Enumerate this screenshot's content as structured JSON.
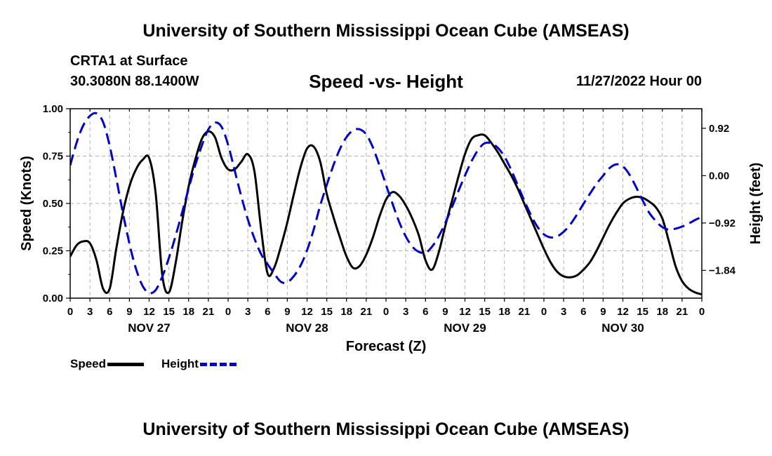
{
  "header": {
    "title": "University of Southern Mississippi Ocean Cube (AMSEAS)",
    "station": "CRTA1 at Surface",
    "coordinates": "30.3080N  88.1400W",
    "subtitle": "Speed -vs- Height",
    "datetime": "11/27/2022 Hour 00",
    "footer_title": "University of Southern Mississippi Ocean Cube (AMSEAS)"
  },
  "legend": {
    "speed_label": "Speed",
    "height_label": "Height"
  },
  "colors": {
    "speed": "#000000",
    "height": "#0000cc",
    "grid": "#b0b0b0"
  },
  "chart_data": {
    "type": "line",
    "title": "Speed -vs- Height",
    "xlabel": "Forecast (Z)",
    "ylabel": "Speed (Knots)",
    "y2label": "Height (feet)",
    "xlim": [
      0,
      96
    ],
    "ylim": [
      0,
      1
    ],
    "y2lim": [
      -2.38,
      1.3
    ],
    "grid": true,
    "x_tick_hours": [
      0,
      3,
      6,
      9,
      12,
      15,
      18,
      21,
      24,
      27,
      30,
      33,
      36,
      39,
      42,
      45,
      48,
      51,
      54,
      57,
      60,
      63,
      66,
      69,
      72,
      75,
      78,
      81,
      84,
      87,
      90,
      93,
      96
    ],
    "x_tick_labels": [
      "0",
      "3",
      "6",
      "9",
      "12",
      "15",
      "18",
      "21",
      "0",
      "3",
      "6",
      "9",
      "12",
      "15",
      "18",
      "21",
      "0",
      "3",
      "6",
      "9",
      "12",
      "15",
      "18",
      "21",
      "0",
      "3",
      "6",
      "9",
      "12",
      "15",
      "18",
      "21",
      "0"
    ],
    "day_labels": [
      {
        "hour": 12,
        "label": "NOV 27"
      },
      {
        "hour": 36,
        "label": "NOV 28"
      },
      {
        "hour": 60,
        "label": "NOV 29"
      },
      {
        "hour": 84,
        "label": "NOV 30"
      }
    ],
    "y_ticks": [
      0,
      0.25,
      0.5,
      0.75,
      1.0
    ],
    "y_tick_labels": [
      "0.00",
      "0.25",
      "0.50",
      "0.75",
      "1.00"
    ],
    "y2_ticks": [
      0.92,
      0.0,
      -0.92,
      -1.84
    ],
    "y2_tick_labels": [
      "0.92",
      "0.00",
      "−0.92",
      "−1.84"
    ],
    "series": [
      {
        "name": "Speed",
        "axis": "left",
        "style": "solid",
        "x": [
          0,
          1,
          2,
          3,
          4,
          5,
          6,
          7,
          8,
          9,
          10,
          11,
          12,
          13,
          14,
          15,
          16,
          17,
          18,
          19,
          20,
          21,
          22,
          23,
          24,
          25,
          26,
          27,
          28,
          29,
          30,
          31,
          32,
          33,
          34,
          35,
          36,
          37,
          38,
          39,
          40,
          41,
          42,
          43,
          44,
          45,
          46,
          47,
          48,
          49,
          50,
          51,
          52,
          53,
          54,
          55,
          56,
          57,
          58,
          59,
          60,
          61,
          62,
          63,
          64,
          65,
          66,
          67,
          68,
          69,
          70,
          71,
          72,
          73,
          74,
          75,
          76,
          77,
          78,
          79,
          80,
          81,
          82,
          83,
          84,
          85,
          86,
          87,
          88,
          89,
          90,
          91,
          92,
          93,
          94,
          95,
          96
        ],
        "values": [
          0.22,
          0.28,
          0.3,
          0.29,
          0.2,
          0.05,
          0.05,
          0.26,
          0.45,
          0.59,
          0.68,
          0.73,
          0.74,
          0.55,
          0.12,
          0.03,
          0.18,
          0.4,
          0.59,
          0.73,
          0.84,
          0.88,
          0.85,
          0.74,
          0.68,
          0.68,
          0.72,
          0.76,
          0.67,
          0.37,
          0.13,
          0.16,
          0.27,
          0.4,
          0.55,
          0.69,
          0.79,
          0.8,
          0.72,
          0.55,
          0.43,
          0.32,
          0.22,
          0.16,
          0.17,
          0.23,
          0.32,
          0.43,
          0.52,
          0.56,
          0.54,
          0.49,
          0.42,
          0.33,
          0.2,
          0.15,
          0.24,
          0.38,
          0.51,
          0.64,
          0.76,
          0.84,
          0.86,
          0.86,
          0.82,
          0.77,
          0.71,
          0.65,
          0.58,
          0.5,
          0.42,
          0.34,
          0.26,
          0.19,
          0.14,
          0.115,
          0.11,
          0.12,
          0.15,
          0.19,
          0.25,
          0.32,
          0.39,
          0.45,
          0.5,
          0.525,
          0.535,
          0.53,
          0.51,
          0.48,
          0.42,
          0.3,
          0.17,
          0.09,
          0.05,
          0.03,
          0.02
        ]
      },
      {
        "name": "Height",
        "axis": "right",
        "style": "dashed",
        "x": [
          0,
          1,
          2,
          3,
          4,
          5,
          6,
          7,
          8,
          9,
          10,
          11,
          12,
          13,
          14,
          15,
          16,
          17,
          18,
          19,
          20,
          21,
          22,
          23,
          24,
          25,
          26,
          27,
          28,
          29,
          30,
          31,
          32,
          33,
          34,
          35,
          36,
          37,
          38,
          39,
          40,
          41,
          42,
          43,
          44,
          45,
          46,
          47,
          48,
          49,
          50,
          51,
          52,
          53,
          54,
          55,
          56,
          57,
          58,
          59,
          60,
          61,
          62,
          63,
          64,
          65,
          66,
          67,
          68,
          69,
          70,
          71,
          72,
          73,
          74,
          75,
          76,
          77,
          78,
          79,
          80,
          81,
          82,
          83,
          84,
          85,
          86,
          87,
          88,
          89,
          90,
          91,
          92,
          93,
          94,
          95,
          96
        ],
        "values": [
          0.2,
          0.65,
          0.98,
          1.16,
          1.21,
          1.04,
          0.58,
          -0.05,
          -0.72,
          -1.32,
          -1.81,
          -2.14,
          -2.28,
          -2.22,
          -1.96,
          -1.6,
          -1.18,
          -0.72,
          -0.25,
          0.2,
          0.58,
          0.9,
          1.03,
          0.95,
          0.6,
          0.1,
          -0.4,
          -0.85,
          -1.22,
          -1.52,
          -1.72,
          -1.9,
          -2.06,
          -2.07,
          -1.95,
          -1.75,
          -1.45,
          -1.05,
          -0.58,
          -0.18,
          0.2,
          0.52,
          0.75,
          0.88,
          0.9,
          0.8,
          0.55,
          0.2,
          -0.18,
          -0.55,
          -0.9,
          -1.18,
          -1.38,
          -1.48,
          -1.5,
          -1.38,
          -1.18,
          -0.92,
          -0.62,
          -0.3,
          0.0,
          0.28,
          0.5,
          0.63,
          0.63,
          0.54,
          0.37,
          0.12,
          -0.18,
          -0.48,
          -0.76,
          -0.99,
          -1.14,
          -1.2,
          -1.18,
          -1.09,
          -0.95,
          -0.76,
          -0.55,
          -0.35,
          -0.16,
          0.0,
          0.15,
          0.22,
          0.18,
          0.02,
          -0.22,
          -0.48,
          -0.72,
          -0.88,
          -1.0,
          -1.05,
          -1.03,
          -0.99,
          -0.93,
          -0.86,
          -0.8
        ]
      }
    ]
  }
}
